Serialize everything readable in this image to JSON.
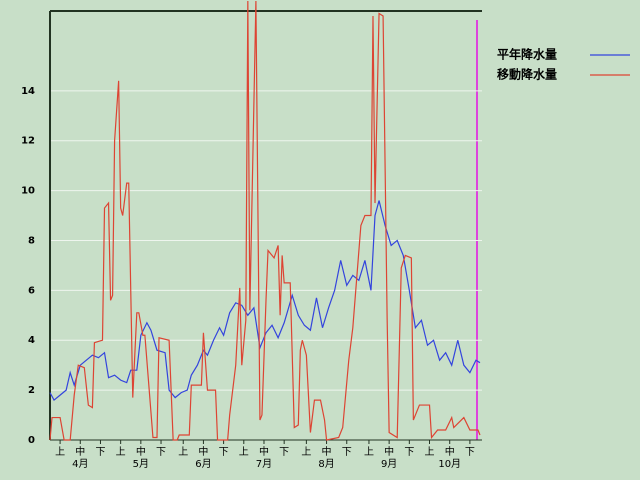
{
  "chart_data": {
    "type": "line",
    "series": [
      {
        "name": "平年降水量",
        "color": "#3344dd",
        "x": [
          0,
          2,
          5,
          8,
          10,
          12,
          15,
          18,
          21,
          24,
          27,
          29,
          32,
          35,
          38,
          40,
          43,
          45,
          48,
          50,
          53,
          57,
          59,
          62,
          65,
          68,
          70,
          73,
          76,
          78,
          81,
          84,
          86,
          89,
          92,
          95,
          98,
          101,
          104,
          107,
          110,
          113,
          116,
          120,
          123,
          126,
          129,
          132,
          135,
          138,
          141,
          144,
          147,
          150,
          153,
          156,
          159,
          161,
          163,
          166,
          169,
          172,
          175,
          178,
          181,
          184,
          187,
          190,
          193,
          196,
          199,
          202,
          205,
          208,
          211,
          213
        ],
        "values": [
          1.9,
          1.6,
          1.8,
          2.0,
          2.7,
          2.2,
          3.0,
          3.2,
          3.4,
          3.3,
          3.5,
          2.5,
          2.6,
          2.4,
          2.3,
          2.8,
          2.8,
          4.2,
          4.7,
          4.4,
          3.6,
          3.5,
          2.0,
          1.7,
          1.9,
          2.0,
          2.6,
          3.0,
          3.6,
          3.4,
          4.0,
          4.5,
          4.2,
          5.1,
          5.5,
          5.4,
          5.0,
          5.3,
          3.7,
          4.3,
          4.6,
          4.1,
          4.7,
          5.8,
          5.0,
          4.6,
          4.4,
          5.7,
          4.5,
          5.3,
          6.0,
          7.2,
          6.2,
          6.6,
          6.4,
          7.2,
          6.0,
          9.0,
          9.6,
          8.6,
          7.8,
          8.0,
          7.4,
          6.0,
          4.5,
          4.8,
          3.8,
          4.0,
          3.2,
          3.5,
          3.0,
          4.0,
          3.0,
          2.7,
          3.2,
          3.1
        ]
      },
      {
        "name": "移動降水量",
        "color": "#dd4433",
        "x": [
          0,
          1,
          5,
          7,
          10,
          12,
          14,
          17,
          19,
          21,
          22,
          26,
          27,
          29,
          30,
          31,
          32,
          34,
          35,
          36,
          38,
          39,
          41,
          43,
          44,
          46,
          47,
          51,
          53,
          54,
          59,
          61,
          63,
          64,
          69,
          70,
          75,
          76,
          78,
          82,
          83,
          88,
          89,
          92,
          94,
          95,
          97,
          98,
          99,
          102,
          104,
          105,
          107,
          108,
          111,
          113,
          114,
          115,
          116,
          119,
          121,
          123,
          124,
          125,
          127,
          129,
          131,
          134,
          136,
          137,
          143,
          145,
          148,
          150,
          154,
          156,
          159,
          160,
          161,
          163,
          165,
          167,
          168,
          172,
          174,
          176,
          179,
          180,
          183,
          188,
          189,
          192,
          196,
          199,
          200,
          205,
          208,
          212,
          213
        ],
        "values": [
          0,
          0.9,
          0.9,
          0,
          0,
          1.8,
          3.0,
          2.9,
          1.4,
          1.3,
          3.9,
          4.0,
          9.3,
          9.5,
          5.6,
          5.8,
          12.0,
          14.4,
          9.3,
          9.0,
          10.3,
          10.3,
          1.7,
          5.1,
          5.1,
          4.2,
          4.2,
          0.1,
          0.1,
          4.1,
          4.0,
          0,
          0,
          0.2,
          0.2,
          2.2,
          2.2,
          4.3,
          2.0,
          2.0,
          0,
          0,
          1.0,
          3.0,
          6.1,
          3.0,
          4.8,
          17.6,
          5.2,
          17.6,
          0.8,
          1.0,
          5.6,
          7.6,
          7.3,
          7.8,
          5.0,
          7.4,
          6.3,
          6.3,
          0.5,
          0.6,
          3.6,
          4.0,
          3.4,
          0.3,
          1.6,
          1.6,
          0.8,
          0,
          0.1,
          0.5,
          3.2,
          4.5,
          8.6,
          9.0,
          9.0,
          17.0,
          9.5,
          17.1,
          17.0,
          4.9,
          0.3,
          0.1,
          6.9,
          7.4,
          7.3,
          0.8,
          1.4,
          1.4,
          0.1,
          0.4,
          0.4,
          0.9,
          0.5,
          0.9,
          0.4,
          0.4,
          0.2
        ]
      }
    ],
    "xlim": [
      0,
      214
    ],
    "xticks": [
      {
        "value": 5,
        "label": "上"
      },
      {
        "value": 15,
        "label": "中"
      },
      {
        "value": 25,
        "label": "下"
      },
      {
        "value": 35,
        "label": "上"
      },
      {
        "value": 45,
        "label": "中"
      },
      {
        "value": 55,
        "label": "下"
      },
      {
        "value": 66,
        "label": "上"
      },
      {
        "value": 76,
        "label": "中"
      },
      {
        "value": 86,
        "label": "下"
      },
      {
        "value": 96,
        "label": "上"
      },
      {
        "value": 106,
        "label": "中"
      },
      {
        "value": 116,
        "label": "下"
      },
      {
        "value": 127,
        "label": "上"
      },
      {
        "value": 137,
        "label": "中"
      },
      {
        "value": 147,
        "label": "下"
      },
      {
        "value": 158,
        "label": "上"
      },
      {
        "value": 168,
        "label": "中"
      },
      {
        "value": 178,
        "label": "下"
      },
      {
        "value": 188,
        "label": "上"
      },
      {
        "value": 198,
        "label": "中"
      },
      {
        "value": 208,
        "label": "下"
      }
    ],
    "months": [
      {
        "value": 15,
        "label": "4月"
      },
      {
        "value": 45,
        "label": "5月"
      },
      {
        "value": 76,
        "label": "6月"
      },
      {
        "value": 106,
        "label": "7月"
      },
      {
        "value": 137,
        "label": "8月"
      },
      {
        "value": 168,
        "label": "9月"
      },
      {
        "value": 198,
        "label": "10月"
      }
    ],
    "ylim": [
      0,
      17.2
    ],
    "yticks": [
      0,
      2,
      4,
      6,
      8,
      10,
      12,
      14
    ],
    "grid": true
  }
}
